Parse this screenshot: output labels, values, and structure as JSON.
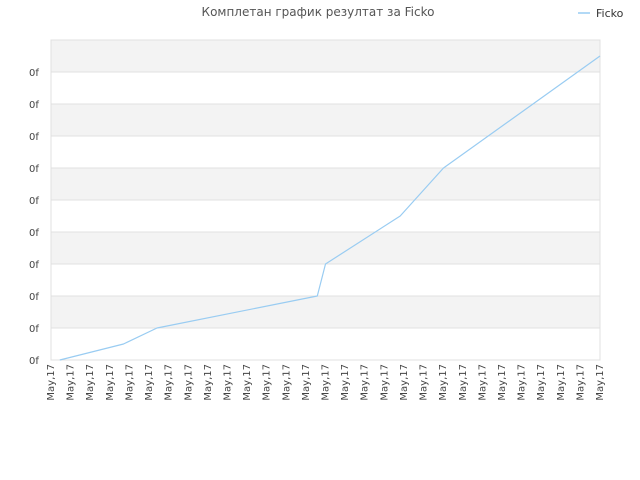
{
  "chart_data": {
    "type": "line",
    "title": "Комплетан график резултат за Ficko",
    "legend": {
      "position": "top-right",
      "entries": [
        "Ficko"
      ]
    },
    "x_tick_labels": [
      "May,17",
      "May,17",
      "May,17",
      "May,17",
      "May,17",
      "May,17",
      "May,17",
      "May,17",
      "May,17",
      "May,17",
      "May,17",
      "May,17",
      "May,17",
      "May,17",
      "May,17",
      "May,17",
      "May,17",
      "May,17",
      "May,17",
      "May,17",
      "May,17",
      "May,17",
      "May,17",
      "May,17",
      "May,17",
      "May,17",
      "May,17",
      "May,17",
      "May,17"
    ],
    "y_tick_labels": [
      "0f",
      "0f",
      "0f",
      "0f",
      "0f",
      "0f",
      "0f",
      "0f",
      "0f",
      "0f"
    ],
    "ylim": [
      0,
      10
    ],
    "grid": true,
    "series": [
      {
        "name": "Ficko",
        "color": "#99ccf2",
        "x": [
          0.016,
          0.132,
          0.193,
          0.485,
          0.5,
          0.636,
          0.715,
          1.0
        ],
        "values": [
          0.0,
          0.5,
          1.0,
          2.0,
          3.0,
          4.5,
          6.0,
          9.5
        ]
      }
    ]
  },
  "colors": {
    "band_dark": "#f3f3f3",
    "band_light": "#ffffff",
    "grid_line": "#e2e2e2",
    "frame": "#e0e0e0"
  }
}
